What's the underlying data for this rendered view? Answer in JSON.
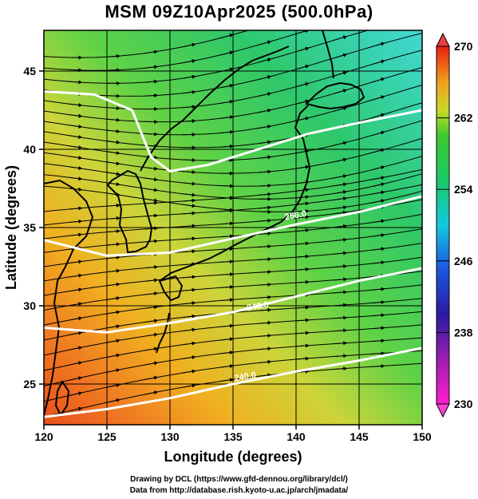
{
  "title": "MSM 09Z10Apr2025 (500.0hPa)",
  "chart_data": {
    "type": "map",
    "title": "MSM 09Z10Apr2025 (500.0hPa)",
    "xlabel": "Longitude (degrees)",
    "ylabel": "Latitude  (degrees)",
    "xlim": [
      120,
      150
    ],
    "ylim": [
      22.4,
      47.6
    ],
    "x_ticks": [
      "120",
      "125",
      "130",
      "135",
      "140",
      "145",
      "150"
    ],
    "y_ticks": [
      "25",
      "30",
      "35",
      "40",
      "45"
    ],
    "colorbar": {
      "min": 230,
      "max": 270,
      "ticks": [
        "230",
        "238",
        "246",
        "254",
        "262",
        "270"
      ]
    },
    "contour_labels": [
      "256.0",
      "248.0",
      "240.0"
    ],
    "contours": [
      {
        "level": 240,
        "points": [
          [
            120,
            22.9
          ],
          [
            125,
            23.4
          ],
          [
            130,
            24.1
          ],
          [
            135,
            25.0
          ],
          [
            140,
            25.8
          ],
          [
            145,
            26.5
          ],
          [
            150,
            27.3
          ]
        ]
      },
      {
        "level": 248,
        "points": [
          [
            120,
            28.6
          ],
          [
            125,
            28.3
          ],
          [
            130,
            28.9
          ],
          [
            135,
            29.6
          ],
          [
            140,
            30.6
          ],
          [
            145,
            31.6
          ],
          [
            150,
            32.4
          ]
        ]
      },
      {
        "level": 256,
        "points": [
          [
            120,
            34.2
          ],
          [
            125,
            33.2
          ],
          [
            130,
            33.4
          ],
          [
            135,
            34.3
          ],
          [
            140,
            35.2
          ],
          [
            145,
            36.0
          ],
          [
            150,
            37.0
          ]
        ]
      },
      {
        "level": 264,
        "points": [
          [
            120,
            43.7
          ],
          [
            124,
            43.5
          ],
          [
            127,
            42.5
          ],
          [
            128.5,
            39.5
          ],
          [
            130,
            38.6
          ],
          [
            133,
            39.0
          ],
          [
            137,
            40.0
          ],
          [
            141,
            41.0
          ],
          [
            145,
            41.7
          ],
          [
            150,
            42.5
          ]
        ]
      }
    ],
    "grid": true
  },
  "footer": {
    "line1": "Drawing by DCL (https://www.gfd-dennou.org/library/dcl/)",
    "line2": "Data from http://database.rish.kyoto-u.ac.jp/arch/jmadata/"
  }
}
